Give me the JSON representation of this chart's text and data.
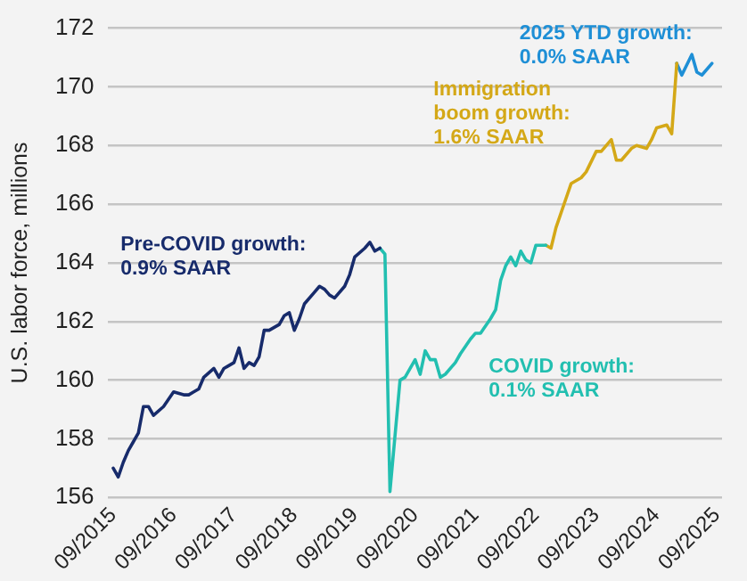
{
  "chart_data": {
    "type": "line",
    "ylabel": "U.S. labor force, millions",
    "ylim": [
      156,
      172
    ],
    "yticks": [
      156,
      158,
      160,
      162,
      164,
      166,
      168,
      170,
      172
    ],
    "xlim": [
      "2015-08",
      "2025-10"
    ],
    "xticks": [
      {
        "value": "2015-09",
        "label": "09/2015"
      },
      {
        "value": "2016-09",
        "label": "09/2016"
      },
      {
        "value": "2017-09",
        "label": "09/2017"
      },
      {
        "value": "2018-09",
        "label": "09/2018"
      },
      {
        "value": "2019-09",
        "label": "09/2019"
      },
      {
        "value": "2020-09",
        "label": "09/2020"
      },
      {
        "value": "2021-09",
        "label": "09/2021"
      },
      {
        "value": "2022-09",
        "label": "09/2022"
      },
      {
        "value": "2023-09",
        "label": "09/2023"
      },
      {
        "value": "2024-09",
        "label": "09/2024"
      },
      {
        "value": "2025-09",
        "label": "09/2025"
      }
    ],
    "grid": "y",
    "legend": false,
    "marker": "none",
    "line_style": "solid",
    "series": [
      {
        "name": "Pre-COVID growth:\n0.9% SAAR",
        "color": "#172b6b",
        "x": [
          "2015-09",
          "2015-10",
          "2015-11",
          "2015-12",
          "2016-01",
          "2016-02",
          "2016-03",
          "2016-04",
          "2016-05",
          "2016-07",
          "2016-09",
          "2016-11",
          "2016-12",
          "2017-01",
          "2017-02",
          "2017-03",
          "2017-05",
          "2017-06",
          "2017-07",
          "2017-09",
          "2017-10",
          "2017-11",
          "2017-12",
          "2018-01",
          "2018-02",
          "2018-03",
          "2018-04",
          "2018-06",
          "2018-07",
          "2018-08",
          "2018-09",
          "2018-10",
          "2018-11",
          "2019-01",
          "2019-02",
          "2019-03",
          "2019-04",
          "2019-05",
          "2019-07",
          "2019-08",
          "2019-09",
          "2019-11",
          "2019-12",
          "2020-01",
          "2020-02"
        ],
        "values": [
          157.0,
          156.7,
          157.2,
          157.6,
          157.9,
          158.2,
          159.1,
          159.1,
          158.8,
          159.1,
          159.6,
          159.5,
          159.5,
          159.6,
          159.7,
          160.1,
          160.4,
          160.1,
          160.4,
          160.6,
          161.1,
          160.4,
          160.6,
          160.5,
          160.8,
          161.7,
          161.7,
          161.9,
          162.2,
          162.3,
          161.7,
          162.1,
          162.6,
          163.0,
          163.2,
          163.1,
          162.9,
          162.8,
          163.2,
          163.6,
          164.2,
          164.5,
          164.7,
          164.4,
          164.5
        ]
      },
      {
        "name": "COVID growth:\n0.1% SAAR",
        "color": "#22bfb0",
        "x": [
          "2020-02",
          "2020-03",
          "2020-04",
          "2020-06",
          "2020-07",
          "2020-09",
          "2020-10",
          "2020-11",
          "2020-12",
          "2021-01",
          "2021-02",
          "2021-03",
          "2021-05",
          "2021-06",
          "2021-08",
          "2021-09",
          "2021-10",
          "2021-12",
          "2022-01",
          "2022-02",
          "2022-03",
          "2022-04",
          "2022-05",
          "2022-06",
          "2022-07",
          "2022-08",
          "2022-09",
          "2022-11"
        ],
        "values": [
          164.5,
          164.3,
          156.2,
          160.0,
          160.1,
          160.7,
          160.2,
          161.0,
          160.7,
          160.7,
          160.1,
          160.2,
          160.6,
          160.9,
          161.4,
          161.6,
          161.6,
          162.1,
          162.4,
          163.4,
          163.9,
          164.2,
          163.9,
          164.4,
          164.1,
          164.0,
          164.6,
          164.6
        ]
      },
      {
        "name": "Immigration\nboom growth:\n1.6% SAAR",
        "color": "#d4a817",
        "x": [
          "2022-11",
          "2022-12",
          "2023-01",
          "2023-03",
          "2023-04",
          "2023-06",
          "2023-07",
          "2023-09",
          "2023-10",
          "2023-12",
          "2024-01",
          "2024-02",
          "2024-04",
          "2024-05",
          "2024-07",
          "2024-08",
          "2024-09",
          "2024-11",
          "2024-12",
          "2025-01"
        ],
        "values": [
          164.6,
          164.5,
          165.2,
          166.2,
          166.7,
          166.9,
          167.1,
          167.8,
          167.8,
          168.2,
          167.5,
          167.5,
          167.9,
          168.0,
          167.9,
          168.2,
          168.6,
          168.7,
          168.4,
          170.8
        ]
      },
      {
        "name": "2025 YTD growth:\n0.0% SAAR",
        "color": "#1e8fd6",
        "x": [
          "2025-01",
          "2025-02",
          "2025-04",
          "2025-05",
          "2025-06",
          "2025-08"
        ],
        "values": [
          170.8,
          170.4,
          171.1,
          170.5,
          170.4,
          170.8
        ]
      }
    ]
  }
}
